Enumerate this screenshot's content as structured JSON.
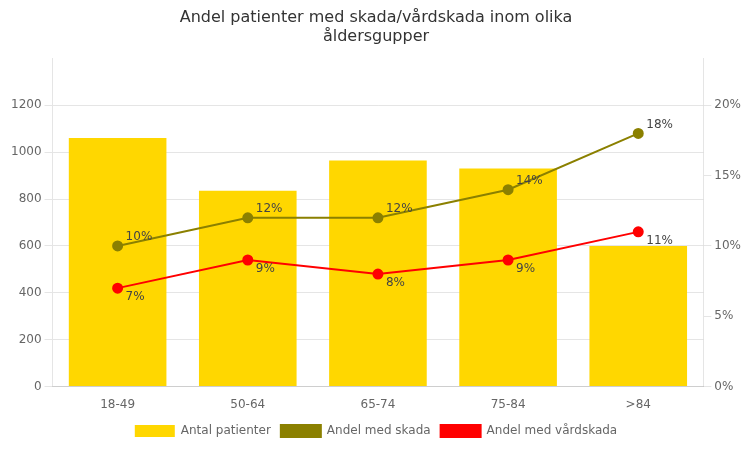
{
  "chart_data": {
    "type": "bar",
    "title": "Andel patienter med skada/vårdskada inom olika\nåldersgupper",
    "categories": [
      "18-49",
      "50-64",
      "65-74",
      "75-84",
      ">84"
    ],
    "series": [
      {
        "name": "Antal patienter",
        "type": "bar",
        "color": "#FFD700",
        "values": [
          1060,
          835,
          965,
          930,
          600
        ]
      },
      {
        "name": "Andel med skada",
        "type": "line",
        "axis": "y2",
        "color": "#8B8000",
        "marker": "circle",
        "line_style": "solid",
        "data_labels": true,
        "values": [
          0.1,
          0.12,
          0.12,
          0.14,
          0.18
        ],
        "value_labels": [
          "10%",
          "12%",
          "12%",
          "14%",
          "18%"
        ]
      },
      {
        "name": "Andel med vårdskada",
        "type": "line",
        "axis": "y2",
        "color": "#FF0000",
        "marker": "circle",
        "line_style": "solid",
        "data_labels": true,
        "values": [
          0.07,
          0.09,
          0.08,
          0.09,
          0.11
        ],
        "value_labels": [
          "7%",
          "9%",
          "8%",
          "9%",
          "11%"
        ]
      }
    ],
    "ylim": [
      0,
      1400
    ],
    "yticks": [
      0,
      200,
      400,
      600,
      800,
      1000,
      1200
    ],
    "y2lim": [
      0,
      0.23333
    ],
    "y2ticks": [
      {
        "value": 0.0,
        "label": "0%"
      },
      {
        "value": 0.05,
        "label": "5%"
      },
      {
        "value": 0.1,
        "label": "10%"
      },
      {
        "value": 0.15,
        "label": "15%"
      },
      {
        "value": 0.2,
        "label": "20%"
      }
    ],
    "grid": true,
    "legend": "bottom"
  }
}
